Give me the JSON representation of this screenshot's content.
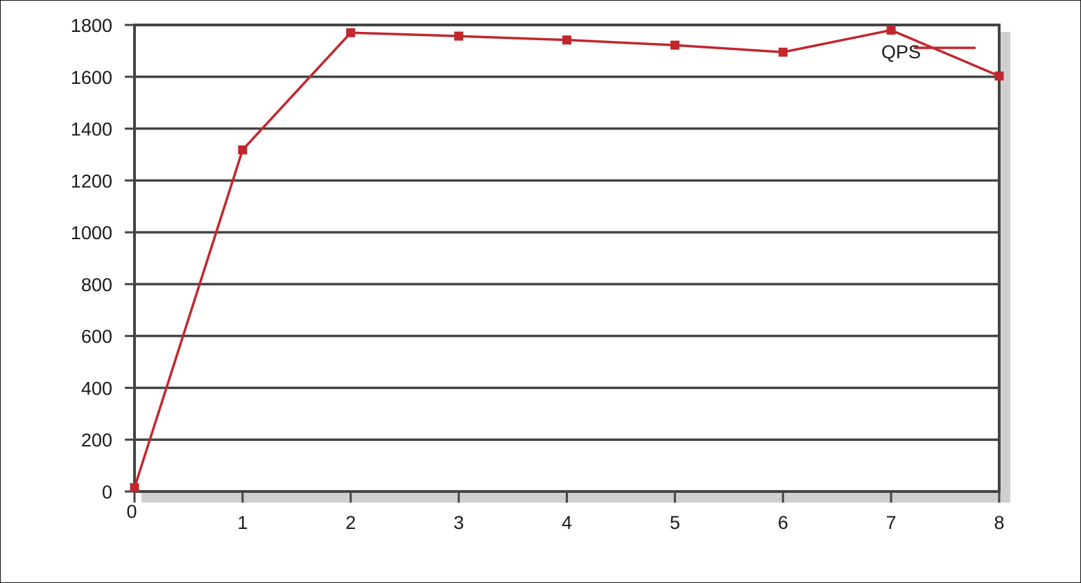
{
  "chart_data": {
    "type": "line",
    "title": "",
    "xlabel": "",
    "ylabel": "",
    "x": [
      0,
      1,
      2,
      3,
      4,
      5,
      6,
      7,
      8
    ],
    "xlim": [
      0,
      8
    ],
    "ylim": [
      0,
      1800
    ],
    "x_ticks": [
      "0",
      "1",
      "2",
      "3",
      "4",
      "5",
      "6",
      "7",
      "8"
    ],
    "y_ticks": [
      "0",
      "200",
      "400",
      "600",
      "800",
      "1000",
      "1200",
      "1400",
      "1600",
      "1800"
    ],
    "grid": "horizontal",
    "legend_position": "top-right",
    "series": [
      {
        "name": "QPS",
        "color": "#c1272d",
        "marker": "square",
        "values": [
          15,
          1318,
          1770,
          1757,
          1742,
          1722,
          1695,
          1780,
          1603
        ]
      }
    ]
  },
  "colors": {
    "frame": "#444444",
    "gridline": "#444444",
    "shadow": "#cfcfcf"
  }
}
